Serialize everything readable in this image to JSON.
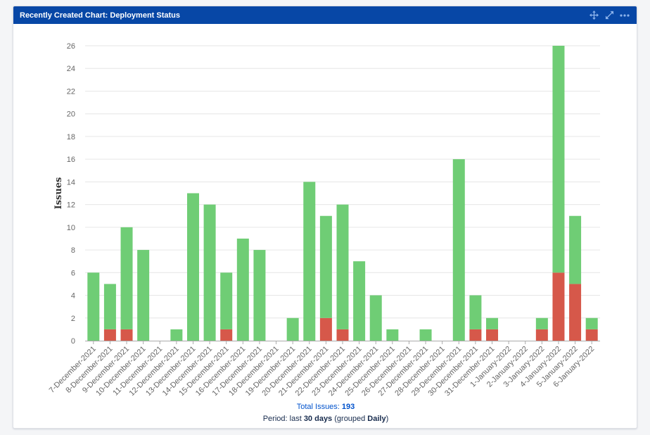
{
  "gadget": {
    "title": "Recently Created Chart: Deployment Status",
    "actions": [
      {
        "name": "move-icon"
      },
      {
        "name": "expand-icon"
      },
      {
        "name": "more-icon"
      }
    ]
  },
  "footer": {
    "total_label": "Total Issues:",
    "total_value": "193",
    "period_prefix": "Period: last",
    "period_days": "30 days",
    "period_mid": "(grouped",
    "period_group": "Daily",
    "period_suffix": ")"
  },
  "chart_data": {
    "type": "bar",
    "stacked": true,
    "ylabel": "Issues",
    "ylim": [
      0,
      26
    ],
    "yticks": [
      0,
      2,
      4,
      6,
      8,
      10,
      12,
      14,
      16,
      18,
      20,
      22,
      24,
      26
    ],
    "grid": true,
    "colors": {
      "green": "#6fcd75",
      "red": "#d6584a"
    },
    "categories": [
      "7-December-2021",
      "8-December-2021",
      "9-December-2021",
      "10-December-2021",
      "11-December-2021",
      "12-December-2021",
      "13-December-2021",
      "14-December-2021",
      "15-December-2021",
      "16-December-2021",
      "17-December-2021",
      "18-December-2021",
      "19-December-2021",
      "20-December-2021",
      "21-December-2021",
      "22-December-2021",
      "23-December-2021",
      "24-December-2021",
      "25-December-2021",
      "26-December-2021",
      "27-December-2021",
      "28-December-2021",
      "29-December-2021",
      "30-December-2021",
      "31-December-2021",
      "1-January-2022",
      "2-January-2022",
      "3-January-2022",
      "4-January-2022",
      "5-January-2022",
      "6-January-2022"
    ],
    "series": [
      {
        "color": "#d6584a",
        "values": [
          0,
          1,
          1,
          0,
          0,
          0,
          0,
          0,
          1,
          0,
          0,
          0,
          0,
          0,
          2,
          1,
          0,
          0,
          0,
          0,
          0,
          0,
          0,
          1,
          1,
          0,
          0,
          1,
          6,
          5,
          1
        ]
      },
      {
        "color": "#6fcd75",
        "values": [
          6,
          4,
          9,
          8,
          0,
          1,
          13,
          12,
          5,
          9,
          8,
          0,
          2,
          14,
          9,
          11,
          7,
          4,
          1,
          0,
          1,
          0,
          16,
          3,
          1,
          0,
          0,
          1,
          20,
          6,
          1
        ]
      }
    ]
  }
}
